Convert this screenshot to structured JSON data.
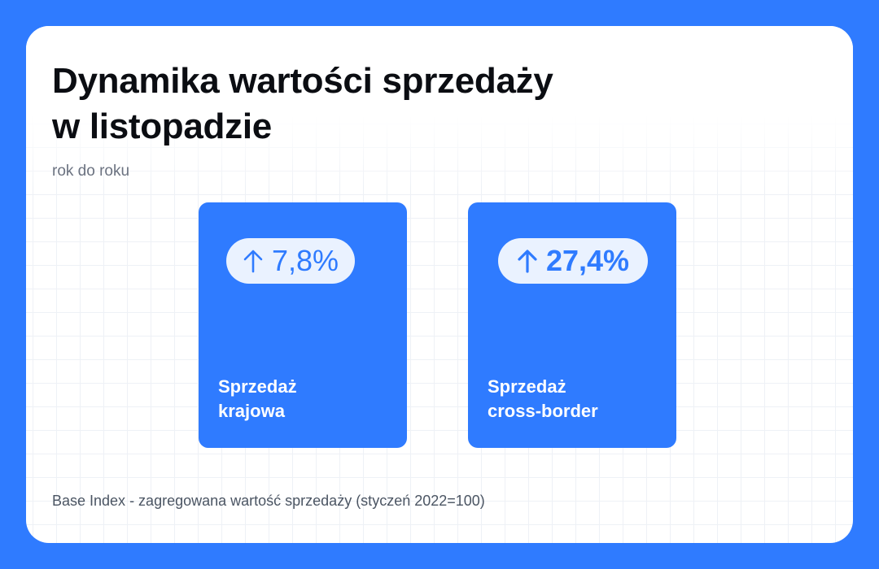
{
  "title": {
    "line1": "Dynamika wartości sprzedaży",
    "line2": "w listopadzie"
  },
  "subtitle": "rok do roku",
  "cards": [
    {
      "arrow_icon": "arrow-up-icon",
      "value": "7,8%",
      "label_line1": "Sprzedaż",
      "label_line2": "krajowa"
    },
    {
      "arrow_icon": "arrow-up-icon",
      "value": "27,4%",
      "label_line1": "Sprzedaż",
      "label_line2": "cross-border"
    }
  ],
  "footnote": "Base Index - zagregowana wartość sprzedaży (styczeń 2022=100)",
  "colors": {
    "background": "#2f7bff",
    "card": "#2f7bff",
    "pill": "#eaf2ff",
    "title": "#0b0d12"
  }
}
